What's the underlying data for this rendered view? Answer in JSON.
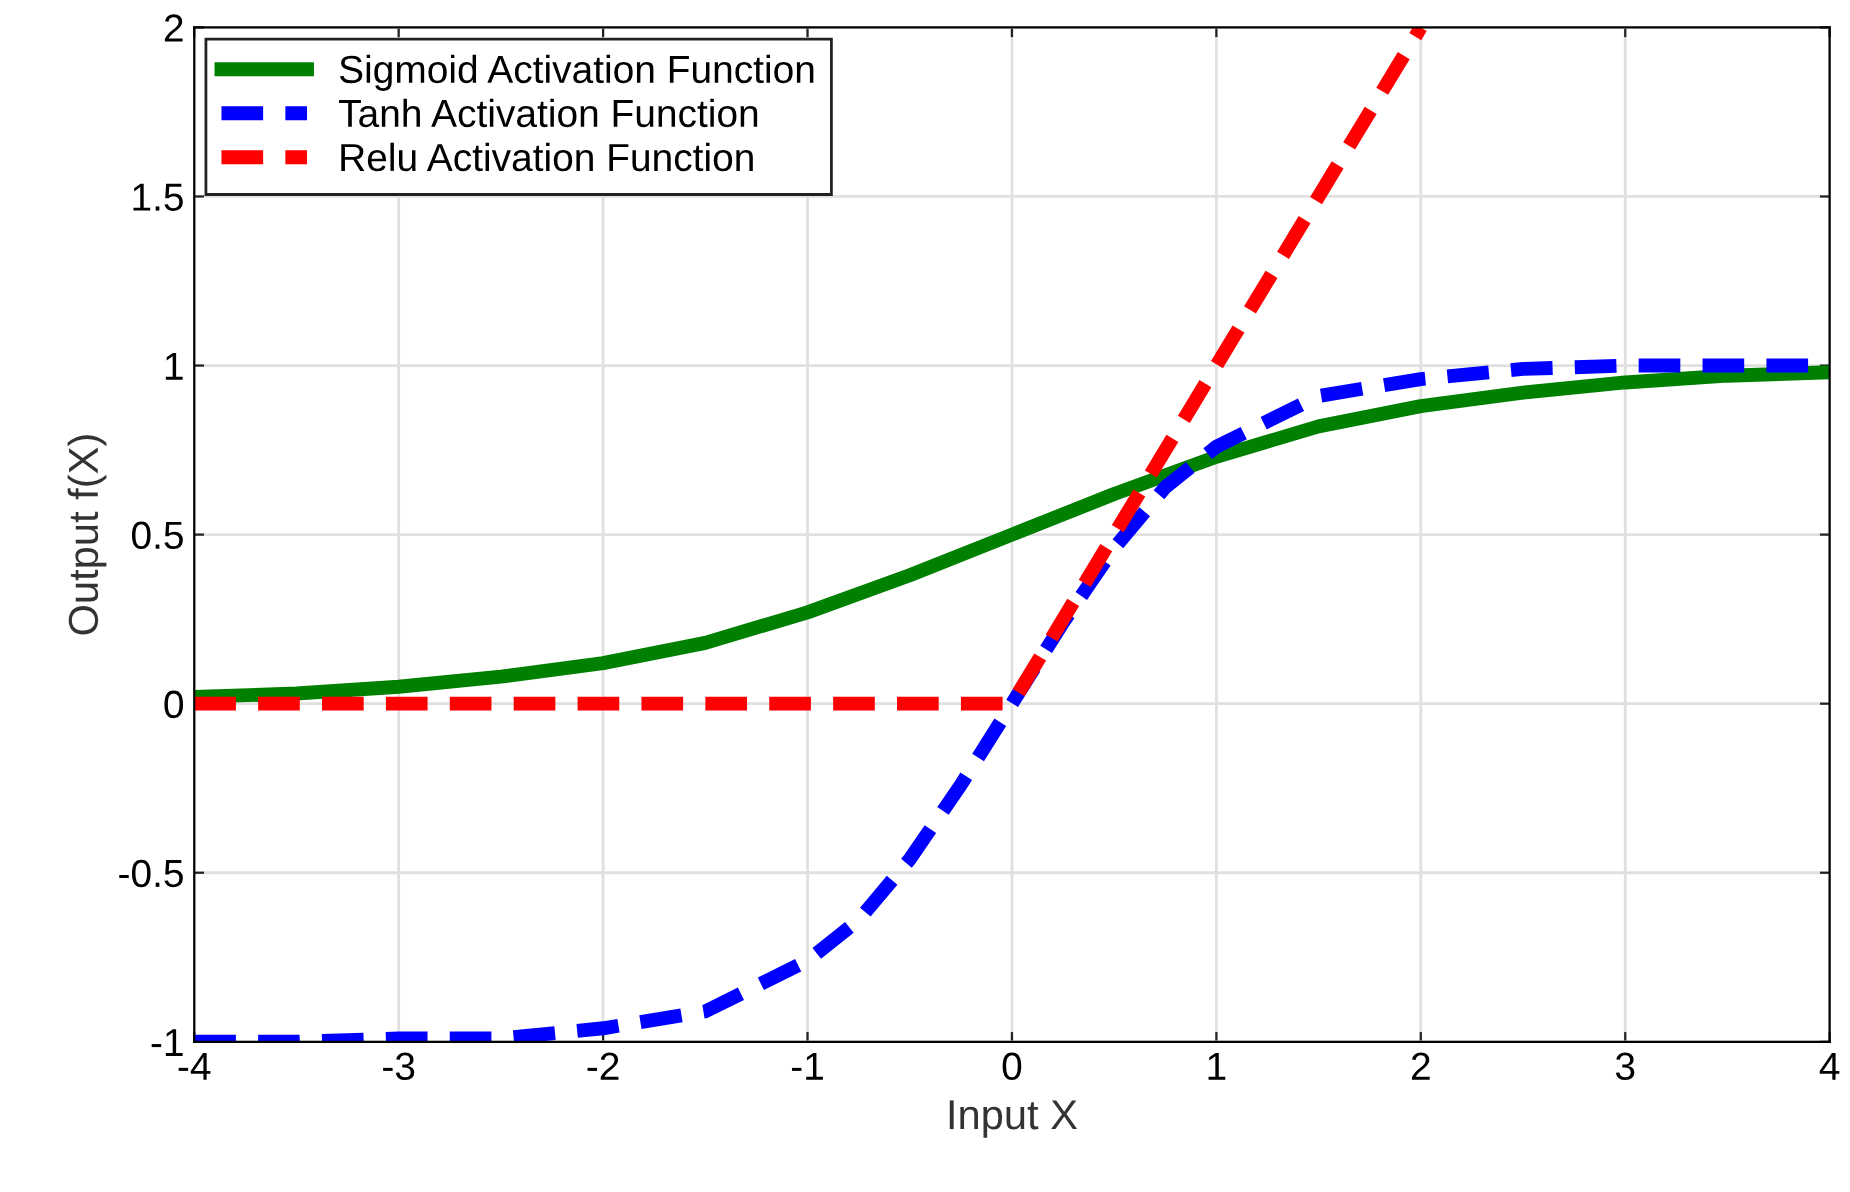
{
  "chart_data": {
    "type": "line",
    "xlabel": "Input X",
    "ylabel": "Output f(X)",
    "xlim": [
      -4,
      4
    ],
    "xticks": [
      -4,
      -3,
      -2,
      -1,
      0,
      1,
      2,
      3,
      4
    ],
    "ylim": [
      -1,
      2
    ],
    "yticks": [
      -1,
      -0.5,
      0,
      0.5,
      1,
      1.5,
      2
    ],
    "grid": true,
    "legend": "top left",
    "series": [
      {
        "name": "Sigmoid Activation Function",
        "color": "#008000",
        "line_style": "solid",
        "x": [
          -4,
          -3.5,
          -3,
          -2.5,
          -2,
          -1.5,
          -1,
          -0.5,
          0,
          0.5,
          1,
          1.5,
          2,
          2.5,
          3,
          3.5,
          4
        ],
        "values": [
          0.02,
          0.03,
          0.05,
          0.08,
          0.12,
          0.18,
          0.27,
          0.38,
          0.5,
          0.62,
          0.73,
          0.82,
          0.88,
          0.92,
          0.95,
          0.97,
          0.98
        ]
      },
      {
        "name": "Tanh Activation Function",
        "color": "#0000ff",
        "line_style": "dashed",
        "x": [
          -4,
          -3.5,
          -3,
          -2.5,
          -2,
          -1.5,
          -1,
          -0.75,
          -0.5,
          -0.25,
          0,
          0.25,
          0.5,
          0.75,
          1,
          1.5,
          2,
          2.5,
          3,
          3.5,
          4
        ],
        "values": [
          -1.0,
          -1.0,
          -0.99,
          -0.99,
          -0.96,
          -0.91,
          -0.76,
          -0.64,
          -0.46,
          -0.24,
          0,
          0.24,
          0.46,
          0.64,
          0.76,
          0.91,
          0.96,
          0.99,
          1.0,
          1.0,
          1.0
        ]
      },
      {
        "name": "Relu Activation Function",
        "color": "#ff0000",
        "line_style": "dashed",
        "x": [
          -4,
          0,
          2
        ],
        "values": [
          0,
          0,
          2
        ]
      }
    ]
  }
}
